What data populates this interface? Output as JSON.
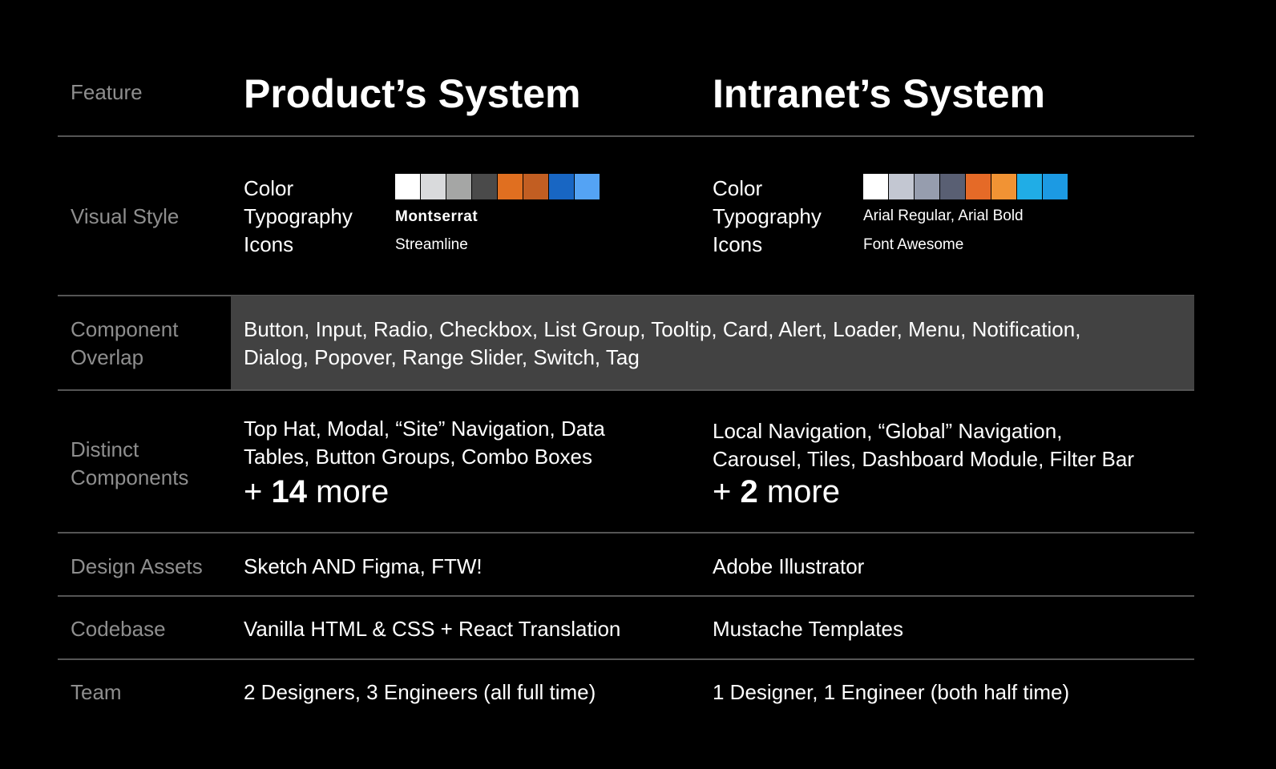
{
  "header": {
    "feature_label": "Feature",
    "product_title": "Product’s System",
    "intranet_title": "Intranet’s System"
  },
  "rows": {
    "visual_style": {
      "label": "Visual Style",
      "product": {
        "color_label": "Color",
        "typography_label": "Typography",
        "icons_label": "Icons",
        "typography_value": "Montserrat",
        "icons_value": "Streamline",
        "swatches": [
          "#ffffff",
          "#d9dadc",
          "#a5a6a5",
          "#4a4a4a",
          "#e06f20",
          "#c25e22",
          "#1866c3",
          "#54a3f4"
        ]
      },
      "intranet": {
        "color_label": "Color",
        "typography_label": "Typography",
        "icons_label": "Icons",
        "typography_value": "Arial Regular, Arial Bold",
        "icons_value": "Font Awesome",
        "swatches": [
          "#ffffff",
          "#c3c7d2",
          "#969dae",
          "#595f73",
          "#e56a27",
          "#f19334",
          "#20ade6",
          "#1c9ae3"
        ]
      }
    },
    "component_overlap": {
      "label_line1": "Component",
      "label_line2": "Overlap",
      "line1": "Button, Input, Radio, Checkbox, List Group, Tooltip, Card, Alert, Loader, Menu, Notification,",
      "line2": "Dialog, Popover, Range Slider, Switch, Tag"
    },
    "distinct_components": {
      "label_line1": "Distinct",
      "label_line2": "Components",
      "product_line1": "Top Hat, Modal, “Site” Navigation, Data",
      "product_line2": "Tables, Button Groups, Combo Boxes",
      "product_more_prefix": "+ ",
      "product_more_count": "14",
      "product_more_suffix": " more",
      "intranet_line1": "Local Navigation, “Global” Navigation,",
      "intranet_line2": "Carousel, Tiles, Dashboard Module, Filter Bar",
      "intranet_more_prefix": "+ ",
      "intranet_more_count": "2",
      "intranet_more_suffix": " more"
    },
    "design_assets": {
      "label": "Design Assets",
      "product": "Sketch AND Figma, FTW!",
      "intranet": "Adobe Illustrator"
    },
    "codebase": {
      "label": "Codebase",
      "product": "Vanilla HTML & CSS + React Translation",
      "intranet": "Mustache Templates"
    },
    "team": {
      "label": "Team",
      "product": "2 Designers, 3 Engineers (all full time)",
      "intranet": "1 Designer, 1 Engineer (both half time)"
    }
  }
}
